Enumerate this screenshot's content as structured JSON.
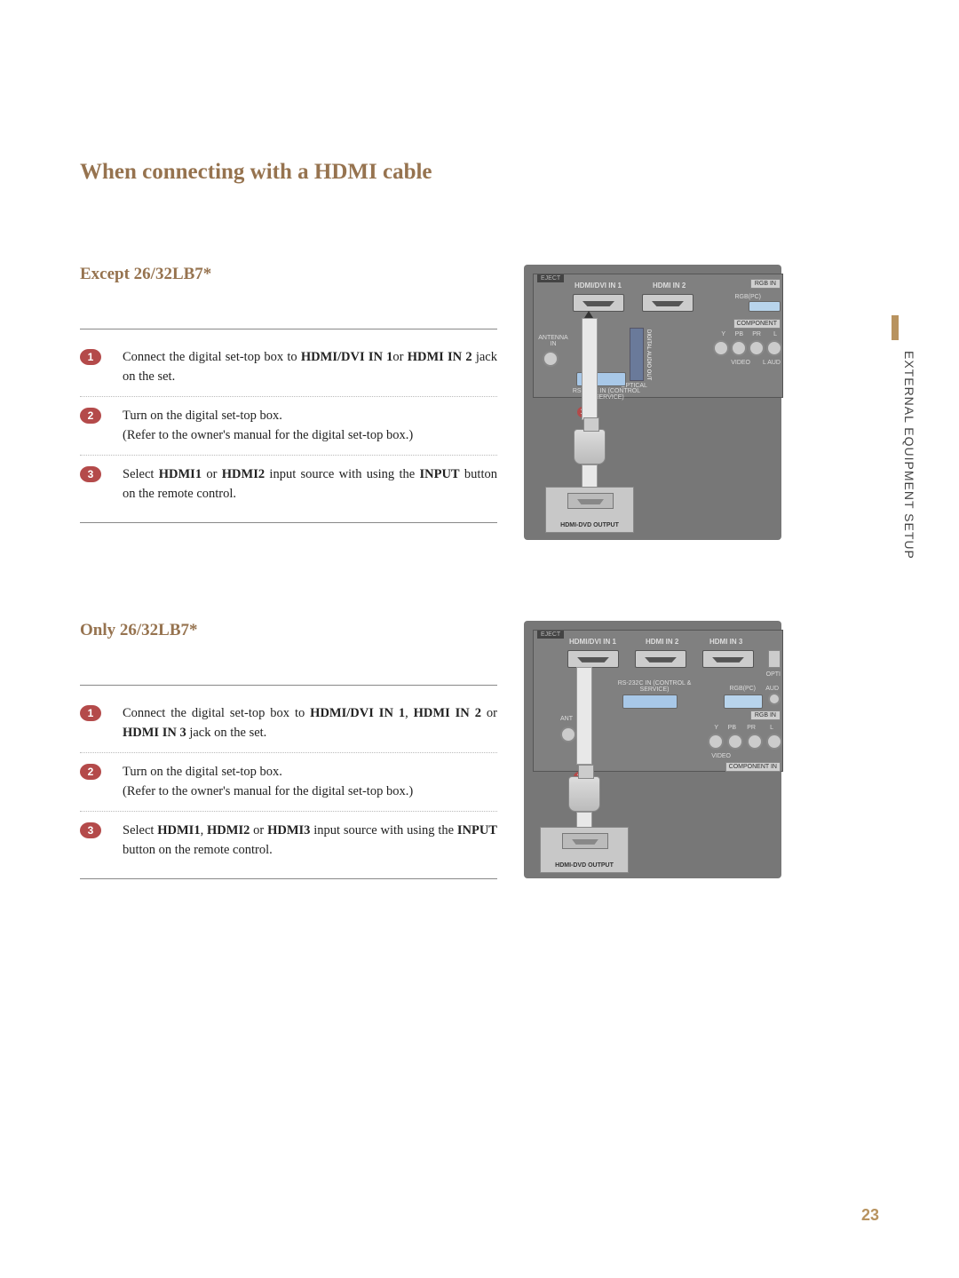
{
  "page": {
    "title": "When connecting with a HDMI cable",
    "side_label": "EXTERNAL EQUIPMENT SETUP",
    "page_number": "23"
  },
  "colors": {
    "heading": "#96734f",
    "badge": "#b44a4a",
    "panel": "#777777",
    "accent": "#b8935f"
  },
  "section1": {
    "subtitle": "Except 26/32LB7*",
    "steps": [
      {
        "n": "1",
        "html": "Connect the digital set-top box to <b>HDMI/DVI IN 1</b>or <b>HDMI IN 2</b> jack on the set."
      },
      {
        "n": "2",
        "html": "Turn on the digital set-top box.<br>(Refer to the owner's manual for the digital set-top box.)"
      },
      {
        "n": "3",
        "html": "Select <b>HDMI1</b> or <b>HDMI2</b> input source with using the <b>INPUT</b> button on the remote control."
      }
    ],
    "diagram": {
      "eject": "EJECT",
      "hdmi": [
        "HDMI/DVI IN 1",
        "HDMI IN 2"
      ],
      "rgb_in": "RGB IN",
      "rgb_pc": "RGB(PC)",
      "component": "COMPONENT",
      "antenna": "ANTENNA IN",
      "rs232": "RS-232C IN (CONTROL & SERVICE)",
      "audio_out": "DIGITAL AUDIO OUT",
      "optical": "OPTICAL",
      "video": "VIDEO",
      "ypbpr": [
        "Y",
        "PB",
        "PR",
        "L"
      ],
      "laud": "L AUD",
      "stb": "HDMI-DVD OUTPUT",
      "marker": "1"
    }
  },
  "section2": {
    "subtitle": "Only 26/32LB7*",
    "steps": [
      {
        "n": "1",
        "html": "Connect the digital set-top box to <b>HDMI/DVI IN 1</b>, <b>HDMI IN 2</b> or <b>HDMI IN 3</b> jack on the set."
      },
      {
        "n": "2",
        "html": "Turn on the digital set-top box.<br>(Refer to the owner's manual for the digital set-top box.)"
      },
      {
        "n": "3",
        "html": "Select <b>HDMI1</b>, <b>HDMI2</b> or <b>HDMI3</b> input source with using the <b>INPUT</b> button on the remote control."
      }
    ],
    "diagram": {
      "eject": "EJECT",
      "hdmi": [
        "HDMI/DVI IN 1",
        "HDMI IN 2",
        "HDMI IN 3"
      ],
      "rs232": "RS-232C IN (CONTROL & SERVICE)",
      "rgb_pc": "RGB(PC)",
      "rgb_in": "RGB IN",
      "ant": "ANT",
      "video": "VIDEO",
      "ypbpr": [
        "Y",
        "PB",
        "PR",
        "L"
      ],
      "component_in": "COMPONENT IN",
      "opti": "OPTI",
      "aud": "AUD",
      "stb": "HDMI-DVD OUTPUT",
      "marker": "1"
    }
  }
}
